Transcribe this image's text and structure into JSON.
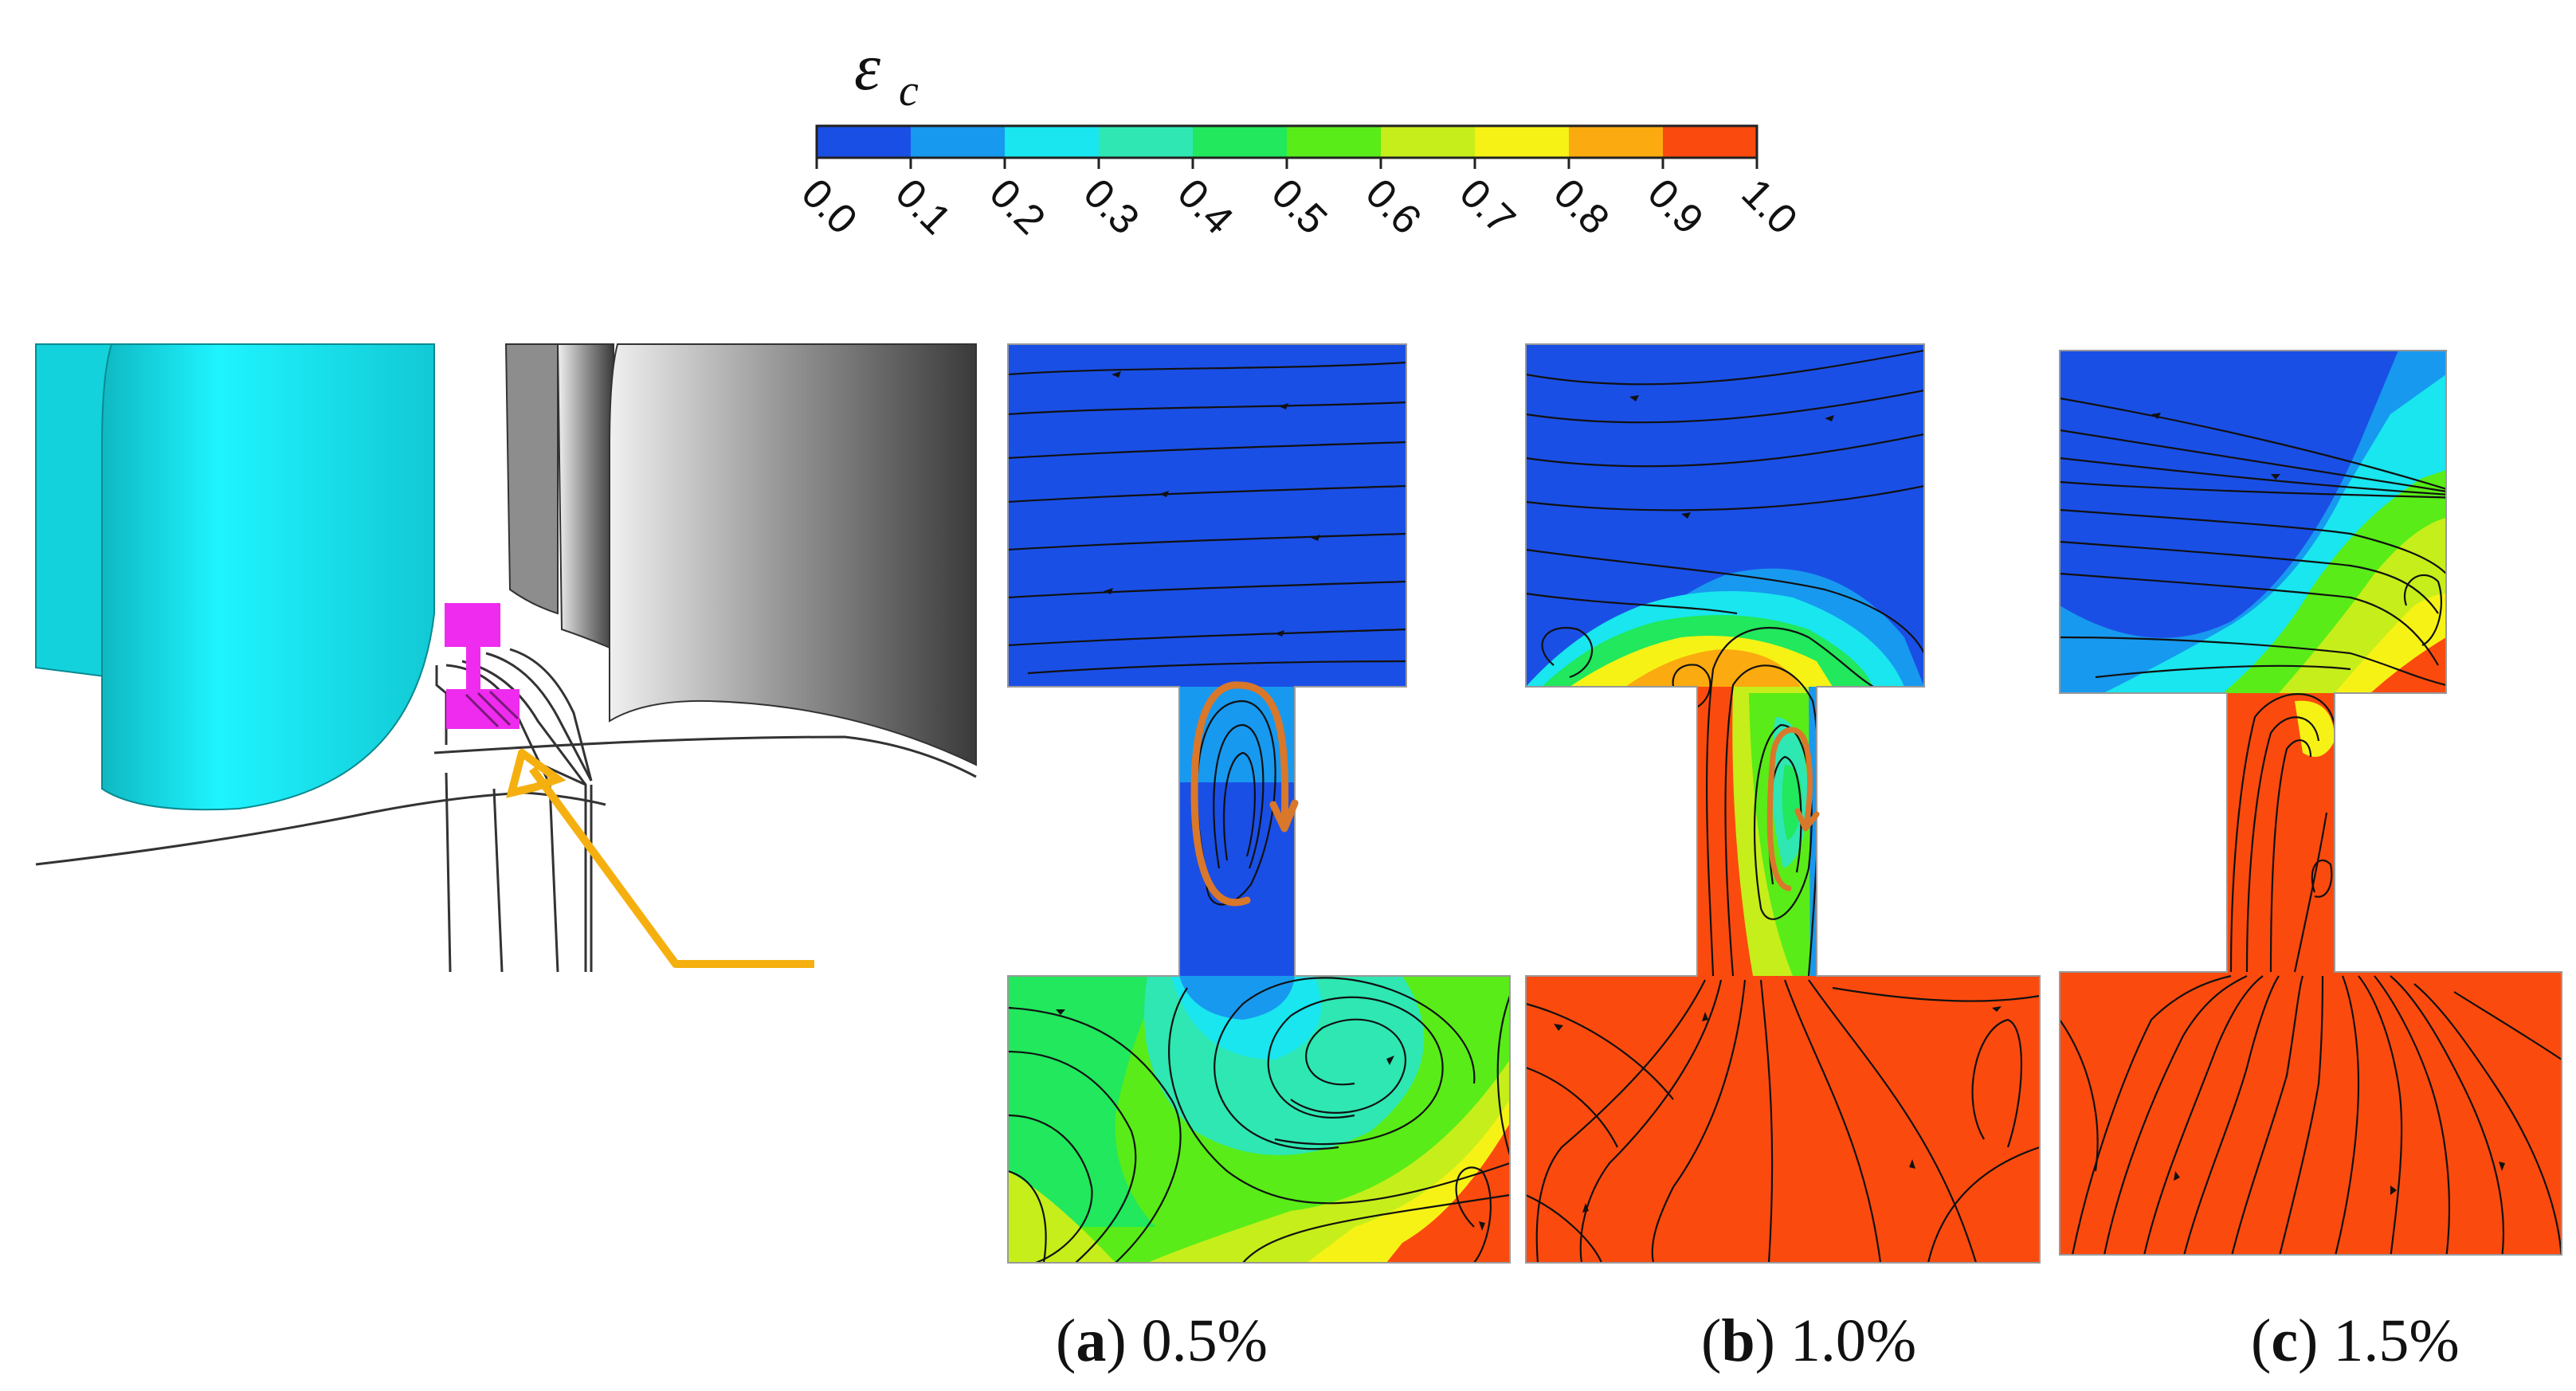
{
  "colorbar": {
    "symbol_main": "ε",
    "symbol_sub": "c",
    "colors": [
      "#1a4fe6",
      "#1799f0",
      "#19e6ee",
      "#2ee7b3",
      "#21e85c",
      "#59ec18",
      "#c6ee1a",
      "#f6f215",
      "#fbaa0f",
      "#fb4a0e"
    ],
    "ticks": [
      "0.0",
      "0.1",
      "0.2",
      "0.3",
      "0.4",
      "0.5",
      "0.6",
      "0.7",
      "0.8",
      "0.9",
      "1.0"
    ],
    "range": [
      0.0,
      1.0
    ]
  },
  "colors": {
    "cyan_blade": "#19e8ef",
    "grey_blade": "#6c6c6c",
    "probe": "#ee2bee",
    "arrow": "#f5b010",
    "vortex_marker": "#d9772a",
    "blue": "#1a4fe6",
    "red": "#fb4a0e"
  },
  "panels": [
    {
      "letter": "a",
      "open": "(",
      "close": ")",
      "value": "0.5%"
    },
    {
      "letter": "b",
      "open": "(",
      "close": ")",
      "value": "1.0%"
    },
    {
      "letter": "c",
      "open": "(",
      "close": ")",
      "value": "1.5%"
    }
  ]
}
